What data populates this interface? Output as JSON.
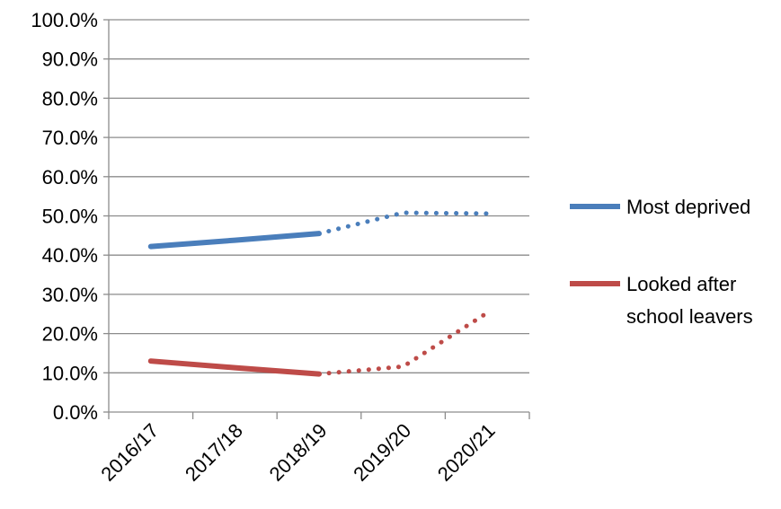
{
  "chart_data": {
    "type": "line",
    "categories": [
      "2016/17",
      "2017/18",
      "2018/19",
      "2019/20",
      "2020/21"
    ],
    "ylim": [
      0,
      100
    ],
    "y_ticks": [
      "0.0%",
      "10.0%",
      "20.0%",
      "30.0%",
      "40.0%",
      "50.0%",
      "60.0%",
      "70.0%",
      "80.0%",
      "90.0%",
      "100.0%"
    ],
    "grid": true,
    "legend_position": "right",
    "series": [
      {
        "name": "Most deprived",
        "color": "#4a7ebb",
        "values": [
          42.2,
          43.8,
          45.5,
          50.8,
          50.6
        ],
        "solid_through_index": 2
      },
      {
        "name": "Looked after school leavers",
        "legend_lines": [
          "Looked after",
          "school leavers"
        ],
        "color": "#be4b48",
        "values": [
          13.0,
          11.3,
          9.7,
          11.6,
          25.3
        ],
        "solid_through_index": 2
      }
    ]
  }
}
